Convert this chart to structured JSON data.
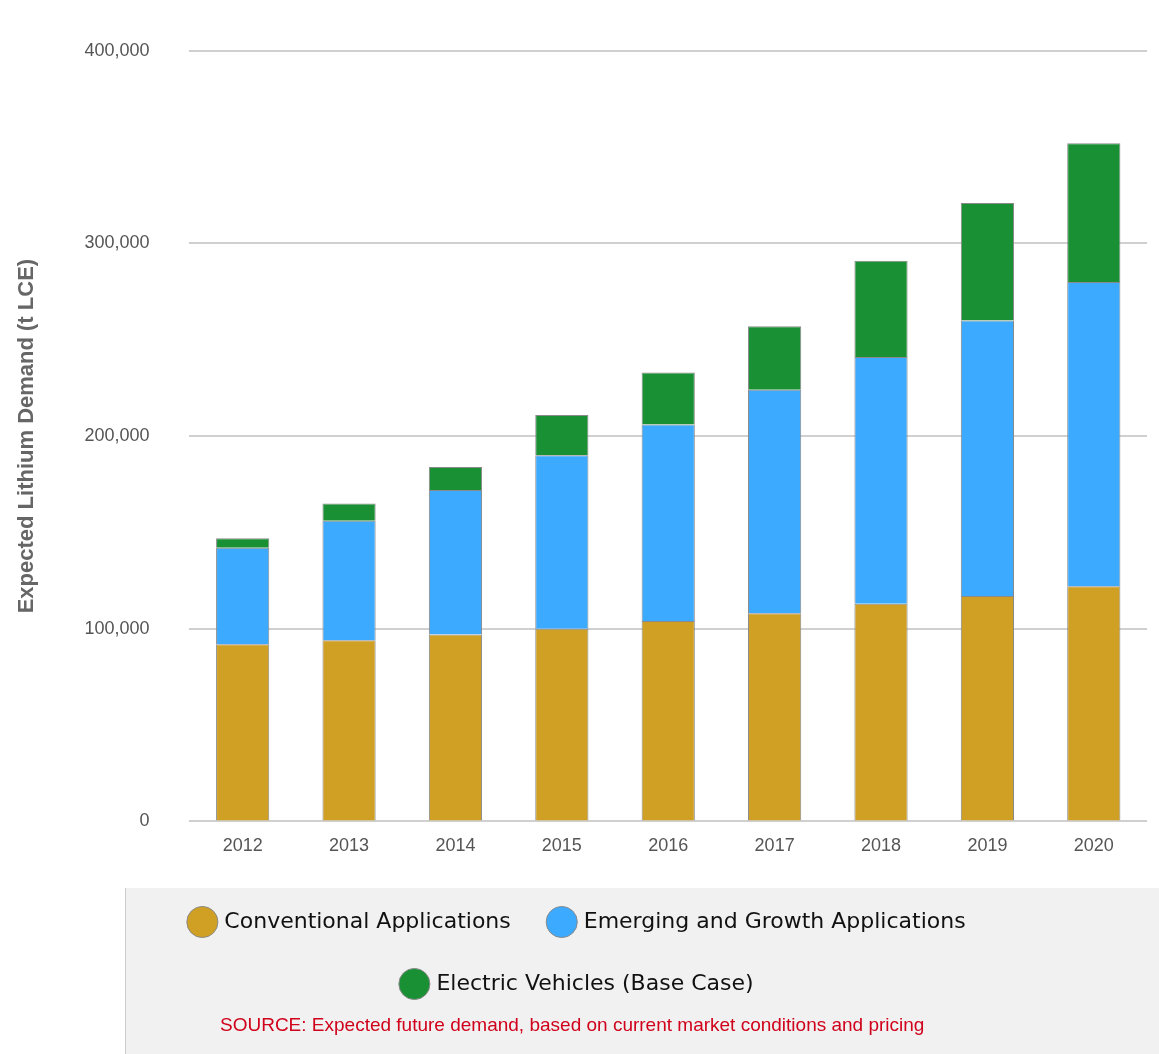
{
  "chart_data": {
    "type": "bar",
    "stacked": true,
    "ylabel": "Expected Lithium Demand (t LCE)",
    "categories": [
      "2012",
      "2013",
      "2014",
      "2015",
      "2016",
      "2017",
      "2018",
      "2019",
      "2020"
    ],
    "series": [
      {
        "name": "Conventional Applications",
        "color": "#cfa023",
        "values": [
          92000,
          94000,
          97000,
          100000,
          104000,
          108000,
          113000,
          117000,
          122000
        ]
      },
      {
        "name": "Emerging and Growth Applications",
        "color": "#3caafe",
        "values": [
          50000,
          62000,
          75000,
          90000,
          102000,
          116000,
          128000,
          143000,
          158000
        ]
      },
      {
        "name": "Electric Vehicles (Base Case)",
        "color": "#1a9035",
        "values": [
          5000,
          9000,
          12000,
          21000,
          27000,
          33000,
          50000,
          61000,
          72000
        ]
      }
    ],
    "ylim": [
      0,
      400000
    ],
    "yticks": [
      {
        "value": 0,
        "label": "0"
      },
      {
        "value": 100000,
        "label": "100,000"
      },
      {
        "value": 200000,
        "label": "200,000"
      },
      {
        "value": 300000,
        "label": "300,000"
      },
      {
        "value": 400000,
        "label": "400,000"
      }
    ],
    "grid": "y",
    "legend": "bottom",
    "annotations": [
      "SOURCE: Expected future demand, based on current market conditions and pricing"
    ]
  }
}
